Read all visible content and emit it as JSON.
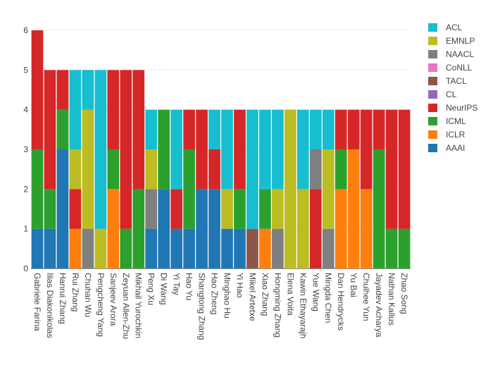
{
  "chart_data": {
    "type": "bar",
    "stacked": true,
    "title": "",
    "xlabel": "",
    "ylabel": "",
    "ylim": [
      0,
      6
    ],
    "yticks": [
      0,
      1,
      2,
      3,
      4,
      5,
      6
    ],
    "grid": true,
    "legend_position": "right",
    "categories": [
      "Gabriele Farina",
      "Ilias Diakonikolas",
      "Hanrui Zhang",
      "Rui Zhang",
      "Chuhan Wu",
      "Pengcheng Yang",
      "Sanjeev Arora",
      "Zeyuan Allen-Zhu",
      "Mikhail Yurochkin",
      "Peng Xu",
      "Di Wang",
      "Yi Tay",
      "Hao Yu",
      "Shangtong Zhang",
      "Hao Zheng",
      "Minghao Hu",
      "Yi Hao",
      "Mikel Artetxe",
      "Xiao Zhang",
      "Hongming Zhang",
      "Elena Voita",
      "Kawin Ethayarajh",
      "Yue Wang",
      "Mingda Chen",
      "Dan Hendrycks",
      "Yu Bai",
      "Chulhee Yun",
      "Jayadev Acharya",
      "Nathan Kallus",
      "Zhao Song"
    ],
    "series": [
      {
        "name": "AAAI",
        "color": "#1f77b4",
        "values": [
          1,
          1,
          3,
          0,
          0,
          0,
          0,
          0,
          0,
          1,
          2,
          1,
          1,
          2,
          2,
          1,
          1,
          0,
          0,
          0,
          0,
          0,
          0,
          0,
          0,
          0,
          0,
          0,
          0,
          0
        ]
      },
      {
        "name": "ICLR",
        "color": "#ff7f0e",
        "values": [
          0,
          0,
          0,
          1,
          0,
          0,
          2,
          0,
          0,
          0,
          0,
          0,
          0,
          0,
          0,
          0,
          0,
          0,
          1,
          0,
          0,
          0,
          0,
          0,
          2,
          3,
          2,
          0,
          0,
          0
        ]
      },
      {
        "name": "ICML",
        "color": "#2ca02c",
        "values": [
          2,
          1,
          1,
          0,
          0,
          0,
          1,
          1,
          2,
          0,
          2,
          0,
          2,
          0,
          0,
          0,
          1,
          0,
          1,
          0,
          0,
          0,
          0,
          0,
          1,
          0,
          0,
          3,
          1,
          1
        ]
      },
      {
        "name": "NeurIPS",
        "color": "#d62728",
        "values": [
          3,
          3,
          1,
          1,
          0,
          0,
          2,
          4,
          3,
          0,
          0,
          1,
          1,
          2,
          1,
          0,
          2,
          0,
          0,
          0,
          0,
          0,
          2,
          0,
          1,
          1,
          2,
          1,
          3,
          3
        ]
      },
      {
        "name": "CL",
        "color": "#9467bd",
        "values": [
          0,
          0,
          0,
          0,
          0,
          0,
          0,
          0,
          0,
          0,
          0,
          0,
          0,
          0,
          0,
          0,
          0,
          0,
          0,
          0,
          0,
          0,
          0,
          0,
          0,
          0,
          0,
          0,
          0,
          0
        ]
      },
      {
        "name": "TACL",
        "color": "#8c564b",
        "values": [
          0,
          0,
          0,
          0,
          0,
          0,
          0,
          0,
          0,
          0,
          0,
          0,
          0,
          0,
          0,
          0,
          0,
          1,
          0,
          0,
          0,
          0,
          0,
          0,
          0,
          0,
          0,
          0,
          0,
          0
        ]
      },
      {
        "name": "CoNLL",
        "color": "#e377c2",
        "values": [
          0,
          0,
          0,
          0,
          0,
          0,
          0,
          0,
          0,
          0,
          0,
          0,
          0,
          0,
          0,
          0,
          0,
          0,
          0,
          0,
          0,
          0,
          0,
          0,
          0,
          0,
          0,
          0,
          0,
          0
        ]
      },
      {
        "name": "NAACL",
        "color": "#7f7f7f",
        "values": [
          0,
          0,
          0,
          0,
          1,
          0,
          0,
          0,
          0,
          1,
          0,
          0,
          0,
          0,
          0,
          0,
          0,
          0,
          0,
          1,
          0,
          0,
          1,
          1,
          0,
          0,
          0,
          0,
          0,
          0
        ]
      },
      {
        "name": "EMNLP",
        "color": "#bcbd22",
        "values": [
          0,
          0,
          0,
          1,
          3,
          1,
          0,
          0,
          0,
          1,
          0,
          0,
          0,
          0,
          0,
          1,
          0,
          0,
          0,
          1,
          4,
          2,
          0,
          2,
          0,
          0,
          0,
          0,
          0,
          0
        ]
      },
      {
        "name": "ACL",
        "color": "#17becf",
        "values": [
          0,
          0,
          0,
          2,
          1,
          4,
          0,
          0,
          0,
          1,
          0,
          2,
          0,
          0,
          1,
          2,
          0,
          3,
          2,
          2,
          0,
          2,
          1,
          1,
          0,
          0,
          0,
          0,
          0,
          0
        ]
      }
    ],
    "legend_order": [
      "ACL",
      "EMNLP",
      "NAACL",
      "CoNLL",
      "TACL",
      "CL",
      "NeurIPS",
      "ICML",
      "ICLR",
      "AAAI"
    ]
  }
}
